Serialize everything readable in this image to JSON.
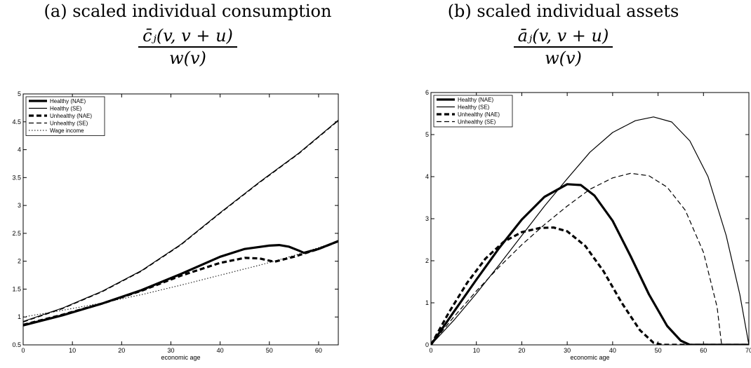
{
  "figures": [
    {
      "id": "a",
      "title": "(a) scaled individual consumption",
      "formula_numerator": "c̄ⱼ(v, v + u)",
      "formula_denominator": "w(v)"
    },
    {
      "id": "b",
      "title": "(b) scaled individual assets",
      "formula_numerator": "āⱼ(v, v + u)",
      "formula_denominator": "w(v)"
    }
  ],
  "chart_data": [
    {
      "type": "line",
      "title": "(a) scaled individual consumption",
      "xlabel": "economic age",
      "ylabel": "",
      "xlim": [
        0,
        64
      ],
      "ylim": [
        0.5,
        5
      ],
      "xticks": [
        0,
        10,
        20,
        30,
        40,
        50,
        60
      ],
      "yticks": [
        0.5,
        1,
        1.5,
        2,
        2.5,
        3,
        3.5,
        4,
        4.5,
        5
      ],
      "ytick_labels": [
        "0.5",
        "1",
        "1.5",
        "2",
        "2.5",
        "3",
        "3.5",
        "4",
        "4.5",
        "5"
      ],
      "grid": false,
      "legend_position": "top-left",
      "series": [
        {
          "name": "Healthy (NAE)",
          "style": "thick-solid",
          "x": [
            0,
            8,
            16,
            24,
            32,
            40,
            45,
            50,
            52,
            54,
            56,
            57,
            60,
            64
          ],
          "y": [
            0.85,
            1.03,
            1.24,
            1.48,
            1.77,
            2.08,
            2.22,
            2.28,
            2.29,
            2.26,
            2.19,
            2.15,
            2.22,
            2.36
          ]
        },
        {
          "name": "Healthy (SE)",
          "style": "thin-solid",
          "x": [
            0,
            8,
            16,
            24,
            32,
            40,
            48,
            56,
            64
          ],
          "y": [
            0.92,
            1.16,
            1.46,
            1.83,
            2.3,
            2.87,
            3.42,
            3.94,
            4.53
          ]
        },
        {
          "name": "Unhealthy (NAE)",
          "style": "thick-dashed",
          "x": [
            0,
            8,
            16,
            24,
            32,
            40,
            45,
            48,
            51,
            55,
            60,
            64
          ],
          "y": [
            0.86,
            1.04,
            1.24,
            1.47,
            1.74,
            1.97,
            2.06,
            2.05,
            1.99,
            2.08,
            2.22,
            2.36
          ]
        },
        {
          "name": "Unhealthy (SE)",
          "style": "thin-dashed",
          "x": [
            0,
            8,
            16,
            24,
            32,
            40,
            48,
            56,
            64
          ],
          "y": [
            0.91,
            1.15,
            1.45,
            1.82,
            2.29,
            2.86,
            3.41,
            3.93,
            4.52
          ]
        },
        {
          "name": "Wage income",
          "style": "dotted",
          "x": [
            0,
            8,
            16,
            24,
            32,
            40,
            48,
            51,
            56,
            64
          ],
          "y": [
            1.0,
            1.12,
            1.25,
            1.4,
            1.57,
            1.75,
            1.93,
            2.0,
            2.13,
            2.36
          ]
        }
      ]
    },
    {
      "type": "line",
      "title": "(b) scaled individual assets",
      "xlabel": "economic age",
      "ylabel": "",
      "xlim": [
        0,
        70
      ],
      "ylim": [
        0,
        6
      ],
      "xticks": [
        0,
        10,
        20,
        30,
        40,
        50,
        60,
        70
      ],
      "yticks": [
        0,
        1,
        2,
        3,
        4,
        5,
        6
      ],
      "ytick_labels": [
        "0",
        "1",
        "2",
        "3",
        "4",
        "5",
        "6"
      ],
      "grid": false,
      "legend_position": "top-left",
      "series": [
        {
          "name": "Healthy (NAE)",
          "style": "thick-solid",
          "x": [
            0,
            5,
            10,
            15,
            20,
            25,
            30,
            33,
            36,
            40,
            44,
            48,
            52,
            55,
            57,
            70
          ],
          "y": [
            0,
            0.78,
            1.55,
            2.3,
            2.98,
            3.52,
            3.82,
            3.8,
            3.55,
            2.95,
            2.1,
            1.2,
            0.45,
            0.1,
            0,
            0
          ]
        },
        {
          "name": "Healthy (SE)",
          "style": "thin-solid",
          "x": [
            0,
            5,
            10,
            15,
            20,
            25,
            30,
            35,
            40,
            45,
            49,
            53,
            57,
            61,
            65,
            68,
            70
          ],
          "y": [
            0,
            0.58,
            1.22,
            1.9,
            2.6,
            3.3,
            3.95,
            4.58,
            5.05,
            5.33,
            5.42,
            5.3,
            4.85,
            4.0,
            2.6,
            1.2,
            0
          ]
        },
        {
          "name": "Unhealthy (NAE)",
          "style": "thick-dashed",
          "x": [
            0,
            4,
            8,
            12,
            16,
            20,
            24,
            27,
            30,
            34,
            38,
            42,
            46,
            49,
            51,
            70
          ],
          "y": [
            0,
            0.78,
            1.48,
            2.05,
            2.45,
            2.68,
            2.78,
            2.79,
            2.7,
            2.35,
            1.75,
            1.0,
            0.35,
            0.05,
            0,
            0
          ]
        },
        {
          "name": "Unhealthy (SE)",
          "style": "thin-dashed",
          "x": [
            0,
            5,
            10,
            15,
            20,
            25,
            30,
            35,
            40,
            44,
            48,
            52,
            56,
            60,
            63,
            64,
            70
          ],
          "y": [
            0,
            0.66,
            1.28,
            1.85,
            2.38,
            2.86,
            3.3,
            3.7,
            3.97,
            4.08,
            4.02,
            3.75,
            3.2,
            2.2,
            0.9,
            0,
            0
          ]
        }
      ]
    }
  ]
}
